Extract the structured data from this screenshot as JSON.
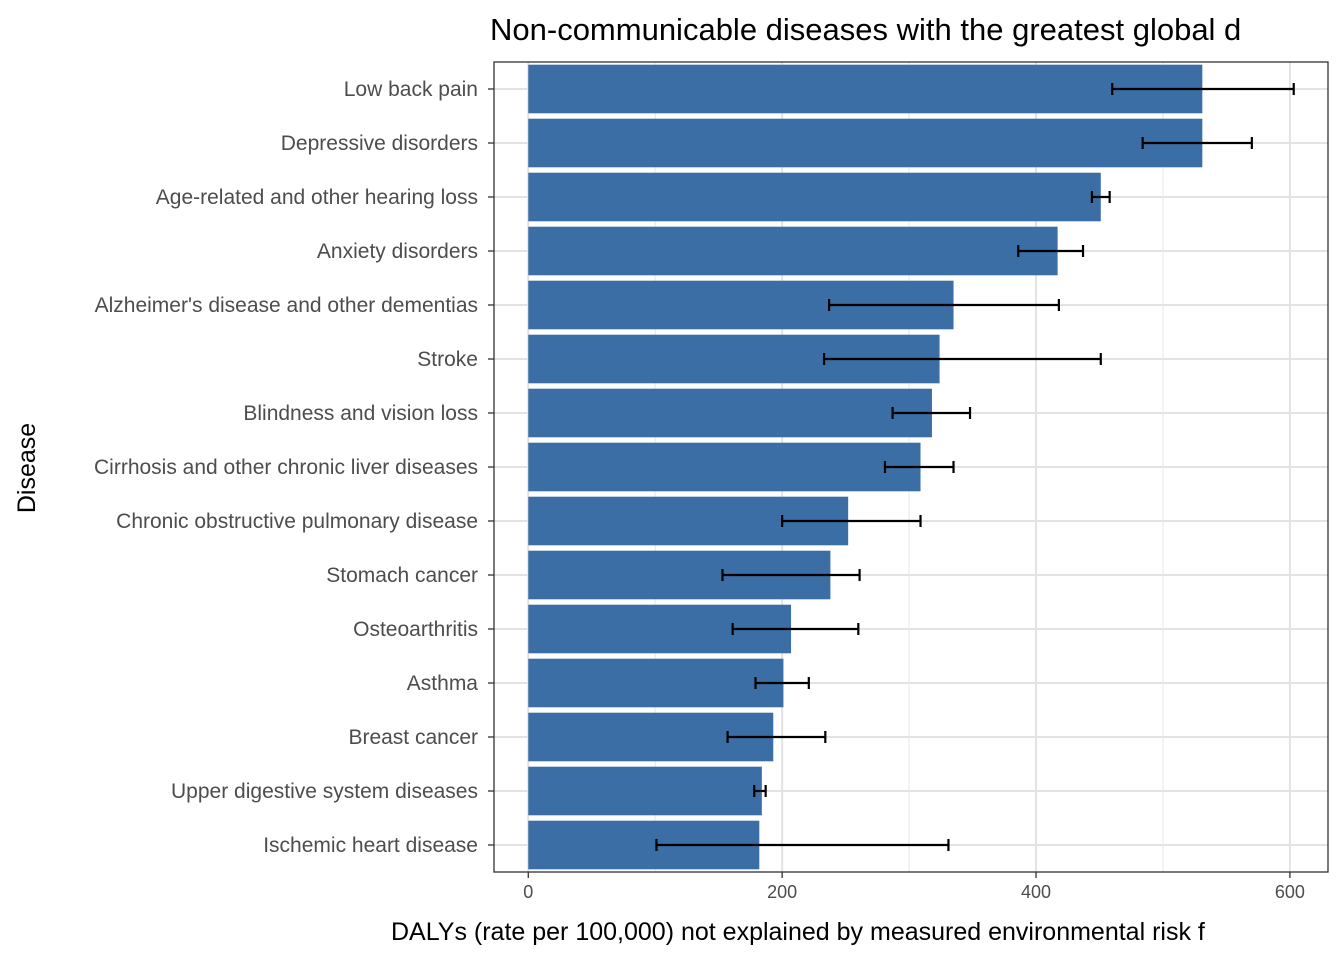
{
  "chart_data": {
    "type": "bar",
    "orientation": "horizontal",
    "title": "Non-communicable diseases with the greatest global d",
    "xlabel": "DALYs (rate per 100,000) not explained by measured environmental risk f",
    "ylabel": "Disease",
    "xlim": [
      -27,
      630
    ],
    "xticks": [
      0,
      200,
      400,
      600
    ],
    "grid": true,
    "bar_color": "#3a6ea5",
    "categories": [
      "Low back pain",
      "Depressive disorders",
      "Age-related and other hearing loss",
      "Anxiety disorders",
      "Alzheimer's disease and other dementias",
      "Stroke",
      "Blindness and vision loss",
      "Cirrhosis and other chronic liver diseases",
      "Chronic obstructive pulmonary disease",
      "Stomach cancer",
      "Osteoarthritis",
      "Asthma",
      "Breast cancer",
      "Upper digestive system diseases",
      "Ischemic heart disease"
    ],
    "values": [
      531,
      531,
      451,
      417,
      335,
      324,
      318,
      309,
      252,
      238,
      207,
      201,
      193,
      184,
      182
    ],
    "error_low": [
      460,
      484,
      444,
      386,
      237,
      233,
      287,
      281,
      200,
      153,
      161,
      179,
      157,
      178,
      101
    ],
    "error_high": [
      603,
      570,
      458,
      437,
      418,
      451,
      348,
      335,
      309,
      261,
      260,
      221,
      234,
      187,
      331
    ]
  }
}
